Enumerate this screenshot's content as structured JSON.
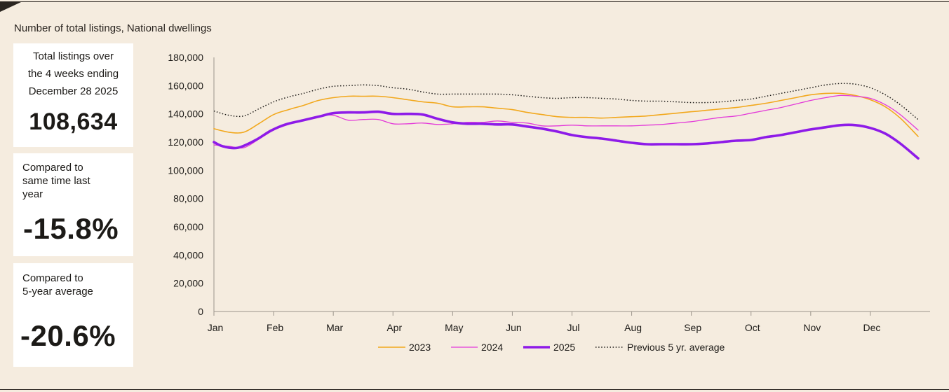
{
  "page_title": "Number of total listings, National dwellings",
  "stats": [
    {
      "label_lines": [
        "Total listings over",
        "the 4 weeks ending",
        "December 28 2025"
      ],
      "value": "108,634"
    },
    {
      "label_lines": [
        "Compared to",
        "same time last",
        "year"
      ],
      "value": "-15.8%"
    },
    {
      "label_lines": [
        "Compared to",
        "5-year average"
      ],
      "value": "-20.6%"
    }
  ],
  "chart_data": {
    "type": "line",
    "title": "Number of total listings, National dwellings",
    "xlabel": "",
    "ylabel": "",
    "ylim": [
      0,
      180000
    ],
    "xlim": [
      0,
      12
    ],
    "yticks": [
      "0",
      "20,000",
      "40,000",
      "60,000",
      "80,000",
      "100,000",
      "120,000",
      "140,000",
      "160,000",
      "180,000"
    ],
    "ytick_values": [
      0,
      20000,
      40000,
      60000,
      80000,
      100000,
      120000,
      140000,
      160000,
      180000
    ],
    "xticks": [
      "Jan",
      "Feb",
      "Mar",
      "Apr",
      "May",
      "Jun",
      "Jul",
      "Aug",
      "Sep",
      "Oct",
      "Nov",
      "Dec"
    ],
    "grid": false,
    "legend_position": "bottom",
    "series": [
      {
        "name": "2023",
        "color": "#f2a81d",
        "style": "solid",
        "width": 1.6,
        "x": [
          0,
          0.25,
          0.5,
          0.75,
          1.0,
          1.25,
          1.5,
          1.75,
          2.0,
          2.25,
          2.5,
          2.75,
          3.0,
          3.25,
          3.5,
          3.75,
          4.0,
          4.25,
          4.5,
          4.75,
          5.0,
          5.25,
          5.5,
          5.75,
          6.0,
          6.25,
          6.5,
          6.75,
          7.0,
          7.25,
          7.5,
          7.75,
          8.0,
          8.25,
          8.5,
          8.75,
          9.0,
          9.25,
          9.5,
          9.75,
          10.0,
          10.25,
          10.5,
          10.75,
          11.0,
          11.25,
          11.5,
          11.8
        ],
        "y": [
          129500,
          127000,
          127000,
          133000,
          139500,
          143000,
          146000,
          149500,
          151500,
          152500,
          152500,
          152500,
          151500,
          150000,
          148500,
          147500,
          145000,
          145000,
          145000,
          144000,
          143000,
          141000,
          139500,
          138000,
          137500,
          137500,
          137000,
          137500,
          138000,
          138500,
          139500,
          140500,
          141500,
          142500,
          143500,
          144500,
          146000,
          147500,
          149500,
          151500,
          153500,
          154500,
          154500,
          153000,
          150000,
          145000,
          137000,
          124000
        ]
      },
      {
        "name": "2024",
        "color": "#e33ad9",
        "style": "solid",
        "width": 1.3,
        "x": [
          0,
          0.25,
          0.5,
          0.75,
          1.0,
          1.25,
          1.5,
          1.75,
          2.0,
          2.25,
          2.5,
          2.75,
          3.0,
          3.25,
          3.5,
          3.75,
          4.0,
          4.25,
          4.5,
          4.75,
          5.0,
          5.25,
          5.5,
          5.75,
          6.0,
          6.25,
          6.5,
          6.75,
          7.0,
          7.25,
          7.5,
          7.75,
          8.0,
          8.25,
          8.5,
          8.75,
          9.0,
          9.25,
          9.5,
          9.75,
          10.0,
          10.25,
          10.5,
          10.75,
          11.0,
          11.25,
          11.5,
          11.8
        ],
        "y": [
          118000,
          117000,
          116000,
          122000,
          128500,
          132500,
          135500,
          138500,
          139000,
          135500,
          136000,
          136000,
          133000,
          133000,
          133500,
          132500,
          133000,
          134000,
          134000,
          135000,
          134000,
          133500,
          131500,
          131500,
          132000,
          131500,
          131500,
          131500,
          131500,
          132000,
          132500,
          133500,
          134500,
          136000,
          137500,
          138500,
          140500,
          142500,
          144500,
          147000,
          149500,
          151500,
          153000,
          152500,
          151000,
          146500,
          139500,
          128500
        ]
      },
      {
        "name": "2025",
        "color": "#8e1be8",
        "style": "solid",
        "width": 3.6,
        "x": [
          0,
          0.15,
          0.4,
          0.7,
          0.95,
          1.2,
          1.5,
          1.8,
          2.0,
          2.25,
          2.5,
          2.75,
          3.0,
          3.25,
          3.5,
          3.75,
          4.0,
          4.25,
          4.5,
          4.75,
          5.0,
          5.25,
          5.5,
          5.75,
          6.0,
          6.25,
          6.5,
          6.75,
          7.0,
          7.25,
          7.5,
          7.75,
          8.0,
          8.25,
          8.5,
          8.75,
          9.0,
          9.25,
          9.5,
          9.75,
          10.0,
          10.25,
          10.5,
          10.75,
          11.0,
          11.25,
          11.5,
          11.8
        ],
        "y": [
          120000,
          117000,
          116000,
          121500,
          128000,
          132500,
          135500,
          138500,
          140500,
          141000,
          141000,
          141500,
          140000,
          140000,
          139500,
          136500,
          134000,
          133000,
          133000,
          132500,
          132500,
          131000,
          129500,
          127500,
          125000,
          123500,
          122500,
          121000,
          119500,
          118500,
          118500,
          118500,
          118500,
          119000,
          120000,
          121000,
          121500,
          123500,
          125000,
          127000,
          129000,
          130500,
          132000,
          132000,
          130000,
          126000,
          119000,
          108500
        ]
      },
      {
        "name": "Previous 5 yr. average",
        "color": "#1c1a17",
        "style": "dotted",
        "width": 1.5,
        "x": [
          0,
          0.25,
          0.5,
          0.75,
          1.0,
          1.25,
          1.5,
          1.75,
          2.0,
          2.25,
          2.5,
          2.75,
          3.0,
          3.25,
          3.5,
          3.75,
          4.0,
          4.25,
          4.5,
          4.75,
          5.0,
          5.25,
          5.5,
          5.75,
          6.0,
          6.25,
          6.5,
          6.75,
          7.0,
          7.25,
          7.5,
          7.75,
          8.0,
          8.25,
          8.5,
          8.75,
          9.0,
          9.25,
          9.5,
          9.75,
          10.0,
          10.25,
          10.5,
          10.75,
          11.0,
          11.25,
          11.5,
          11.8
        ],
        "y": [
          142000,
          139000,
          138500,
          143500,
          148500,
          152000,
          154500,
          157500,
          159500,
          160000,
          160500,
          160000,
          158500,
          157500,
          155500,
          154000,
          154000,
          154000,
          154000,
          154000,
          153500,
          152500,
          151500,
          151000,
          151500,
          151500,
          151000,
          150500,
          149500,
          149000,
          149000,
          148500,
          148000,
          148000,
          148500,
          149500,
          150500,
          152500,
          154500,
          156500,
          158500,
          160500,
          161500,
          161000,
          158500,
          153500,
          146500,
          136000
        ]
      }
    ]
  }
}
